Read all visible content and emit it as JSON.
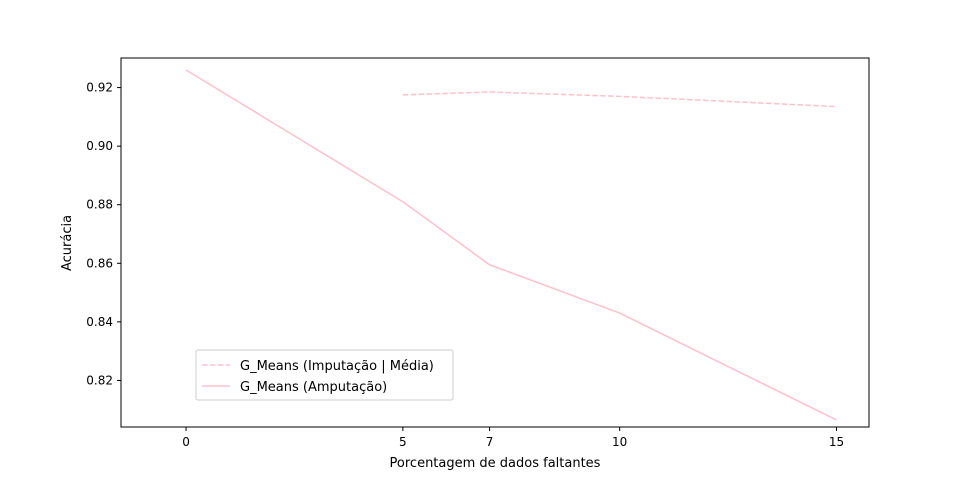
{
  "chart_data": {
    "type": "line",
    "title": "",
    "xlabel": "Porcentagem de dados faltantes",
    "ylabel": "Acurácia",
    "xlim": [
      -1.5,
      15.75
    ],
    "ylim": [
      0.8041,
      0.9301
    ],
    "x_ticks": [
      0,
      5,
      7,
      10,
      15
    ],
    "y_ticks": [
      0.82,
      0.84,
      0.86,
      0.88,
      0.9,
      0.92
    ],
    "y_tick_labels": [
      "0.82",
      "0.84",
      "0.86",
      "0.88",
      "0.90",
      "0.92"
    ],
    "grid": false,
    "legend_position": "lower-left",
    "series": [
      {
        "name": "G_Means (Imputação | Média)",
        "style": "dashed",
        "color": "#ffc0cb",
        "x": [
          5,
          7,
          10,
          15
        ],
        "y": [
          0.9175,
          0.9185,
          0.917,
          0.9135
        ]
      },
      {
        "name": "G_Means (Amputação)",
        "style": "solid",
        "color": "#ffc0cb",
        "x": [
          0,
          5,
          7,
          10,
          15
        ],
        "y": [
          0.926,
          0.881,
          0.8595,
          0.843,
          0.8065
        ]
      }
    ]
  }
}
